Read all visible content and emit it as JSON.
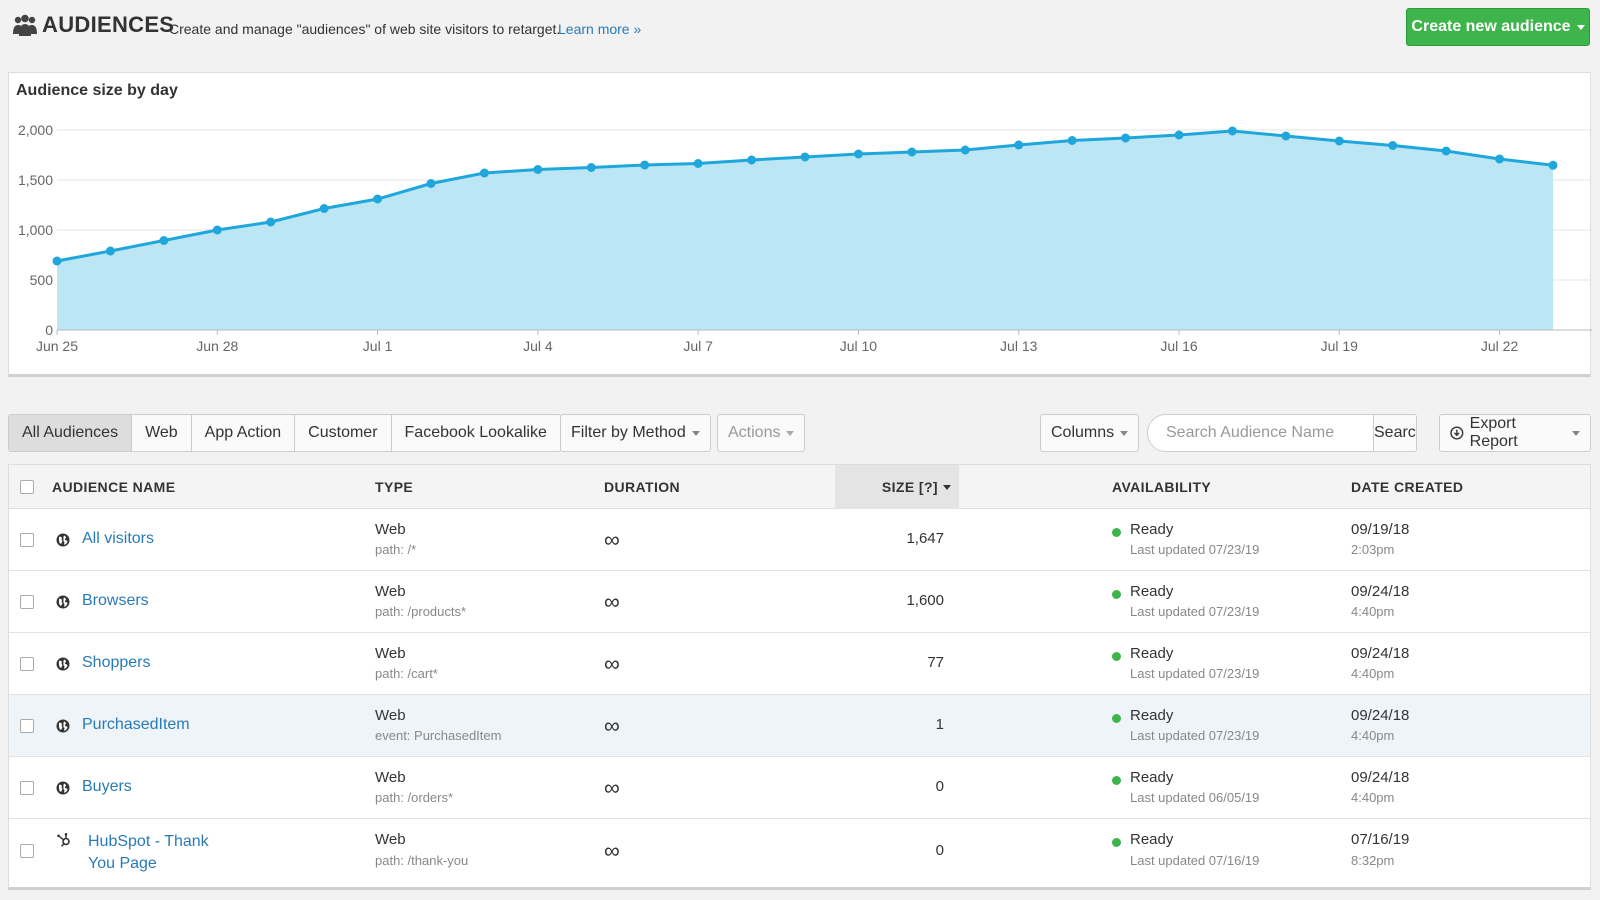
{
  "header": {
    "title": "AUDIENCES",
    "description": "Create and manage \"audiences\" of web site visitors to retarget.",
    "learn_more": "Learn more »",
    "create_button": "Create new audience"
  },
  "chart_data": {
    "type": "area",
    "title": "Audience size by day",
    "x": [
      "Jun 25",
      "Jun 26",
      "Jun 27",
      "Jun 28",
      "Jun 29",
      "Jun 30",
      "Jul 1",
      "Jul 2",
      "Jul 3",
      "Jul 4",
      "Jul 5",
      "Jul 6",
      "Jul 7",
      "Jul 8",
      "Jul 9",
      "Jul 10",
      "Jul 11",
      "Jul 12",
      "Jul 13",
      "Jul 14",
      "Jul 15",
      "Jul 16",
      "Jul 17",
      "Jul 18",
      "Jul 19",
      "Jul 20",
      "Jul 21",
      "Jul 22",
      "Jul 23"
    ],
    "values": [
      690,
      790,
      895,
      1000,
      1080,
      1215,
      1310,
      1465,
      1570,
      1605,
      1625,
      1650,
      1665,
      1700,
      1730,
      1760,
      1780,
      1800,
      1850,
      1895,
      1920,
      1950,
      1990,
      1940,
      1890,
      1845,
      1790,
      1710,
      1647
    ],
    "x_tick_labels": [
      "Jun 25",
      "Jun 28",
      "Jul 1",
      "Jul 4",
      "Jul 7",
      "Jul 10",
      "Jul 13",
      "Jul 16",
      "Jul 19",
      "Jul 22"
    ],
    "y_tick_labels": [
      "0",
      "500",
      "1,000",
      "1,500",
      "2,000"
    ],
    "ylim": [
      0,
      2000
    ],
    "grid": true,
    "line_color": "#1fa7dc",
    "fill_color": "#bde6f5"
  },
  "toolbar": {
    "tabs": [
      "All Audiences",
      "Web",
      "App Action",
      "Customer",
      "Facebook Lookalike"
    ],
    "filter_method": "Filter by Method",
    "actions": "Actions",
    "columns": "Columns",
    "search_placeholder": "Search Audience Name",
    "search_button": "Search",
    "export": "Export Report"
  },
  "table": {
    "headers": {
      "name": "AUDIENCE NAME",
      "type": "TYPE",
      "duration": "DURATION",
      "size": "SIZE [?]",
      "availability": "AVAILABILITY",
      "date": "DATE CREATED"
    },
    "rows": [
      {
        "name": "All visitors",
        "type": "Web",
        "rule": "path: /*",
        "duration": "∞",
        "size": "1,647",
        "status": "Ready",
        "updated": "Last updated 07/23/19",
        "date": "09/19/18",
        "time": "2:03pm"
      },
      {
        "name": "Browsers",
        "type": "Web",
        "rule": "path: /products*",
        "duration": "∞",
        "size": "1,600",
        "status": "Ready",
        "updated": "Last updated 07/23/19",
        "date": "09/24/18",
        "time": "4:40pm"
      },
      {
        "name": "Shoppers",
        "type": "Web",
        "rule": "path: /cart*",
        "duration": "∞",
        "size": "77",
        "status": "Ready",
        "updated": "Last updated 07/23/19",
        "date": "09/24/18",
        "time": "4:40pm"
      },
      {
        "name": "PurchasedItem",
        "type": "Web",
        "rule": "event: PurchasedItem",
        "duration": "∞",
        "size": "1",
        "status": "Ready",
        "updated": "Last updated 07/23/19",
        "date": "09/24/18",
        "time": "4:40pm"
      },
      {
        "name": "Buyers",
        "type": "Web",
        "rule": "path: /orders*",
        "duration": "∞",
        "size": "0",
        "status": "Ready",
        "updated": "Last updated 06/05/19",
        "date": "09/24/18",
        "time": "4:40pm"
      },
      {
        "name": "HubSpot - Thank You Page",
        "type": "Web",
        "rule": "path: /thank-you",
        "duration": "∞",
        "size": "0",
        "status": "Ready",
        "updated": "Last updated 07/16/19",
        "date": "07/16/19",
        "time": "8:32pm"
      }
    ]
  }
}
